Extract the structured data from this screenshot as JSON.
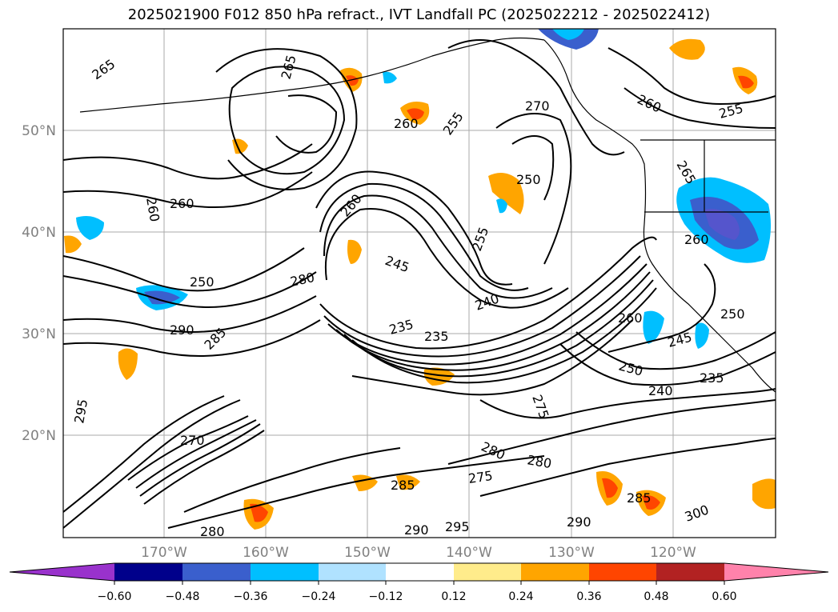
{
  "title": "2025021900 F012 850 hPa refract., IVT Landfall PC (2025022212 - 2025022412)",
  "map": {
    "lat_labels": [
      "50°N",
      "40°N",
      "30°N",
      "20°N"
    ],
    "lon_labels": [
      "170°W",
      "160°W",
      "150°W",
      "140°W",
      "130°W",
      "120°W"
    ],
    "contour_labels": [
      "265",
      "265",
      "260",
      "255",
      "270",
      "260",
      "255",
      "260",
      "260",
      "260",
      "265",
      "245",
      "255",
      "250",
      "250",
      "260",
      "280",
      "240",
      "235",
      "235",
      "260",
      "250",
      "290",
      "245",
      "250",
      "240",
      "235",
      "285",
      "295",
      "275",
      "280",
      "280",
      "285",
      "275",
      "290",
      "295",
      "290",
      "280",
      "270",
      "285",
      "300"
    ]
  },
  "colorbar": {
    "tick_labels": [
      "−0.60",
      "−0.48",
      "−0.36",
      "−0.24",
      "−0.12",
      "0.12",
      "0.24",
      "0.36",
      "0.48",
      "0.60"
    ],
    "colors": [
      "#9932cc",
      "#00008b",
      "#3a5fcd",
      "#00bfff",
      "#b0e2ff",
      "#ffffff",
      "#ffec8b",
      "#ffa500",
      "#ff4500",
      "#b22222",
      "#ff82ab"
    ]
  }
}
